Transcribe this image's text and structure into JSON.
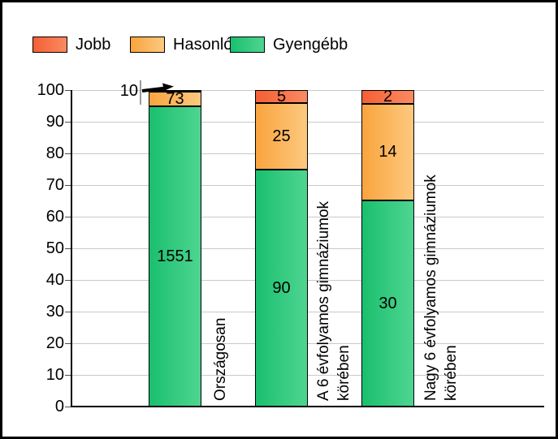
{
  "chart_data": {
    "type": "bar",
    "stacked": true,
    "orientation": "vertical",
    "note": "segment heights are percent of column total; segment labels show raw counts",
    "categories": [
      "Országosan",
      "A 6 évfolyamos gimnáziumok körében",
      "Nagy 6 évfolyamos gimnáziumok körében"
    ],
    "category_label_lines": [
      [
        "Országosan"
      ],
      [
        "A 6 évfolyamos gimnáziumok",
        "körében"
      ],
      [
        "Nagy 6 évfolyamos gimnáziumok",
        "körében"
      ]
    ],
    "series": [
      {
        "name": "Jobb",
        "values": [
          10,
          5,
          2
        ],
        "color": "#f55f35",
        "color_light": "#fb8a62"
      },
      {
        "name": "Hasonló",
        "values": [
          73,
          25,
          14
        ],
        "color": "#f9a43e",
        "color_light": "#fdc97f"
      },
      {
        "name": "Gyengébb",
        "values": [
          1551,
          90,
          30
        ],
        "color": "#1abf6e",
        "color_light": "#4fd591"
      }
    ],
    "y_axis": {
      "min": 0,
      "max": 100,
      "step": 10,
      "ticks": [
        "0",
        "10",
        "20",
        "30",
        "40",
        "50",
        "60",
        "70",
        "80",
        "90",
        "100"
      ]
    },
    "legend": {
      "position": "top-left",
      "items": [
        "Jobb",
        "Hasonló",
        "Gyengébb"
      ]
    },
    "annotation": {
      "text": "10",
      "meaning": "value of Jobb segment of Országosan column",
      "arrow": true
    },
    "grid": {
      "horizontal": true,
      "color": "#c9c9c9"
    }
  }
}
